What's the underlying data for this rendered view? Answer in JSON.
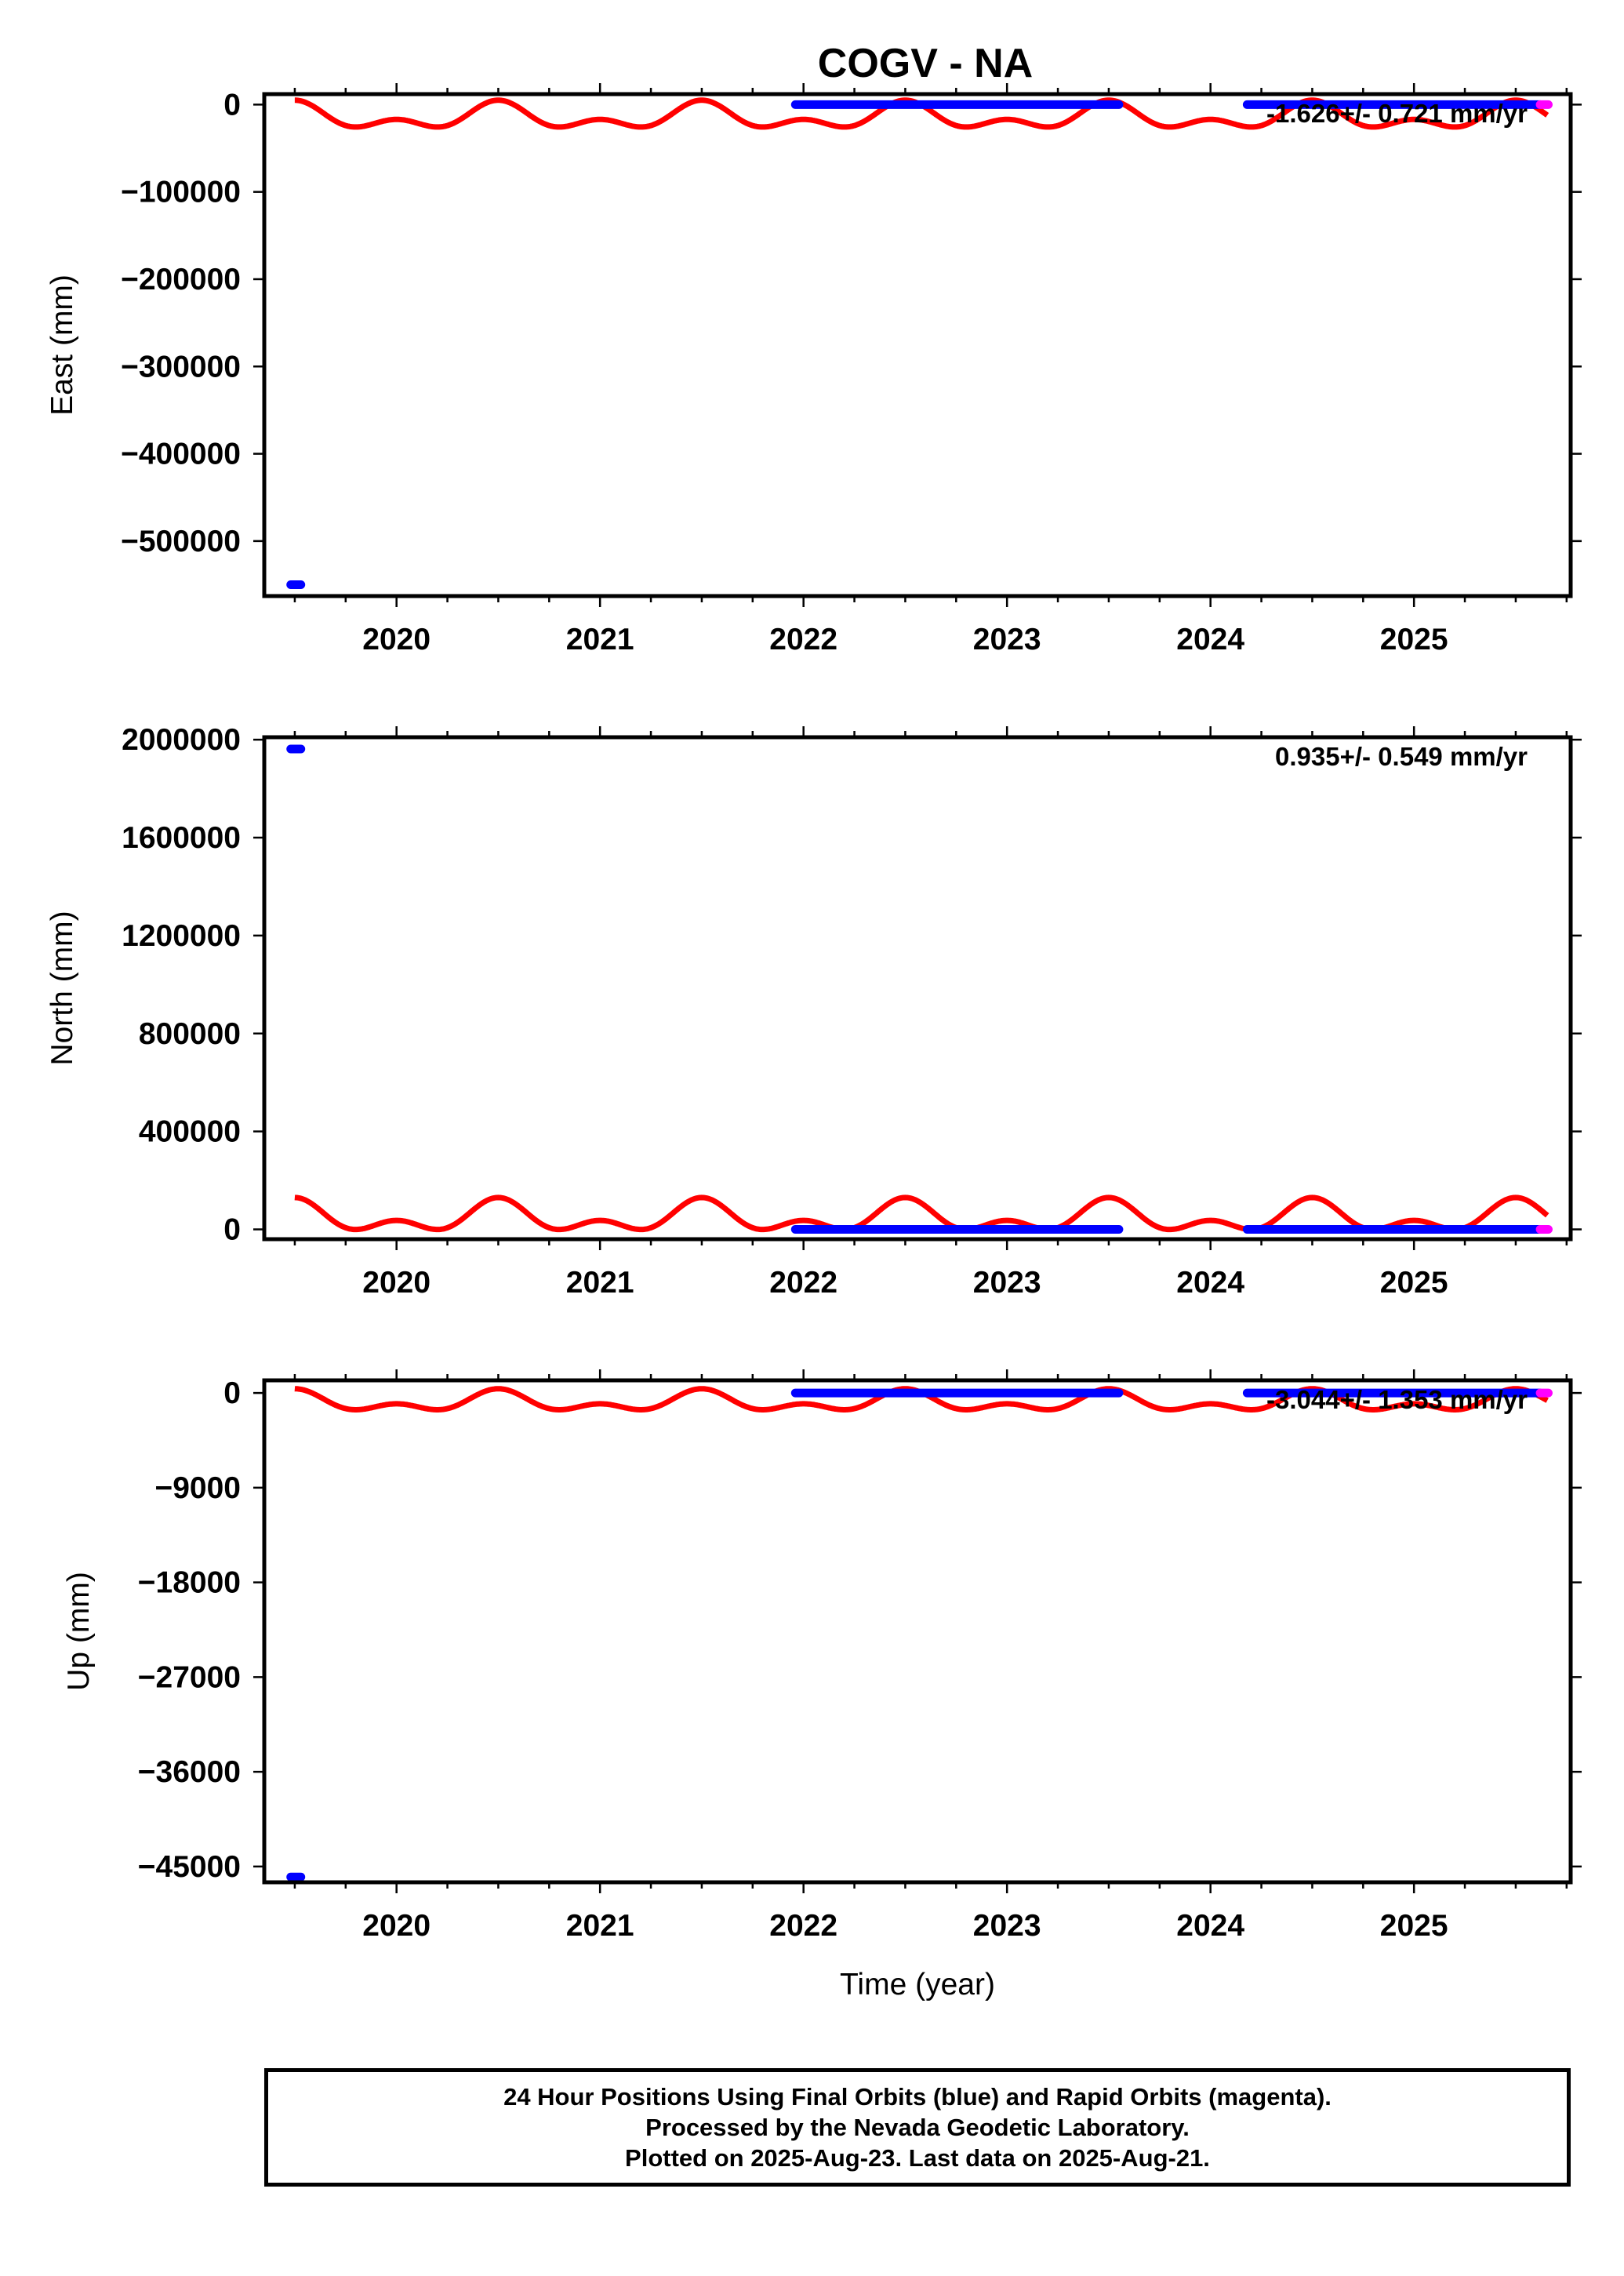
{
  "chart_data": {
    "type": "scatter",
    "title": "COGV - NA",
    "xlabel": "Time (year)",
    "xlim": [
      2019.35,
      2025.77
    ],
    "x_ticks": [
      "2020",
      "2021",
      "2022",
      "2023",
      "2024",
      "2025"
    ],
    "panels": [
      {
        "ylabel": "East (mm)",
        "ylim": [
          -563000,
          12000
        ],
        "y_ticks": [
          "0",
          "−100000",
          "−200000",
          "−300000",
          "−400000",
          "−500000"
        ],
        "y_tick_values": [
          0,
          -100000,
          -200000,
          -300000,
          -400000,
          -500000
        ],
        "rate_text": "-1.626+/- 0.721 mm/yr",
        "seasonal_model": {
          "offset": -15000,
          "amplitude": 20000,
          "phase": 2019.5
        },
        "final_orbits": [
          {
            "x_start": 2019.48,
            "x_end": 2019.53,
            "y": -550000
          },
          {
            "x_start": 2021.96,
            "x_end": 2023.55,
            "y": 0
          },
          {
            "x_start": 2024.18,
            "x_end": 2025.62,
            "y": 0
          }
        ],
        "rapid_orbits": [
          {
            "x_start": 2025.62,
            "x_end": 2025.66,
            "y": 0
          }
        ]
      },
      {
        "ylabel": "North (mm)",
        "ylim": [
          -40000,
          2010000
        ],
        "y_ticks": [
          "2000000",
          "1600000",
          "1200000",
          "800000",
          "400000",
          "0"
        ],
        "y_tick_values": [
          2000000,
          1600000,
          1200000,
          800000,
          400000,
          0
        ],
        "rate_text": "0.935+/- 0.549 mm/yr",
        "seasonal_model": {
          "offset": 45000,
          "amplitude": 85000,
          "phase": 2019.5
        },
        "final_orbits": [
          {
            "x_start": 2019.48,
            "x_end": 2019.53,
            "y": 1962000
          },
          {
            "x_start": 2021.96,
            "x_end": 2023.55,
            "y": 0
          },
          {
            "x_start": 2024.18,
            "x_end": 2025.62,
            "y": 0
          }
        ],
        "rapid_orbits": [
          {
            "x_start": 2025.62,
            "x_end": 2025.66,
            "y": 0
          }
        ]
      },
      {
        "ylabel": "Up (mm)",
        "ylim": [
          -46500,
          1200
        ],
        "y_ticks": [
          "0",
          "−9000",
          "−18000",
          "−27000",
          "−36000",
          "−45000"
        ],
        "y_tick_values": [
          0,
          -9000,
          -18000,
          -27000,
          -36000,
          -45000
        ],
        "rate_text": "-3.044+/- 1.353 mm/yr",
        "seasonal_model": {
          "offset": -900,
          "amplitude": 1300,
          "phase": 2019.5
        },
        "final_orbits": [
          {
            "x_start": 2019.48,
            "x_end": 2019.53,
            "y": -46000
          },
          {
            "x_start": 2021.96,
            "x_end": 2023.55,
            "y": 0
          },
          {
            "x_start": 2024.18,
            "x_end": 2025.62,
            "y": 0
          }
        ],
        "rapid_orbits": [
          {
            "x_start": 2025.62,
            "x_end": 2025.66,
            "y": 0
          }
        ]
      }
    ],
    "colors": {
      "final": "#0000ff",
      "rapid": "#ff00ff",
      "model": "#ff0000"
    }
  },
  "footer": {
    "line1": "24 Hour Positions Using Final Orbits (blue) and Rapid Orbits (magenta).",
    "line2": "Processed by the Nevada Geodetic Laboratory.",
    "line3": "Plotted on 2025-Aug-23. Last data on 2025-Aug-21."
  }
}
